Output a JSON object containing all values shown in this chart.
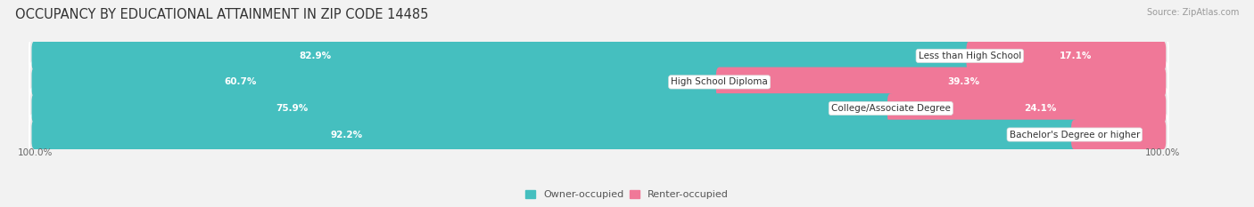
{
  "title": "OCCUPANCY BY EDUCATIONAL ATTAINMENT IN ZIP CODE 14485",
  "source": "Source: ZipAtlas.com",
  "categories": [
    "Less than High School",
    "High School Diploma",
    "College/Associate Degree",
    "Bachelor's Degree or higher"
  ],
  "owner_values": [
    82.9,
    60.7,
    75.9,
    92.2
  ],
  "renter_values": [
    17.1,
    39.3,
    24.1,
    7.8
  ],
  "owner_color": "#45bfbf",
  "renter_color": "#f07898",
  "bg_color": "#f2f2f2",
  "bar_bg_color": "#e0dede",
  "row_bg_color": "#e8e8e8",
  "title_fontsize": 10.5,
  "label_fontsize": 7.5,
  "pct_fontsize": 7.5,
  "axis_label_fontsize": 7.5,
  "source_fontsize": 7,
  "legend_fontsize": 8,
  "bar_height": 0.62,
  "x_left_label": "100.0%",
  "x_right_label": "100.0%"
}
